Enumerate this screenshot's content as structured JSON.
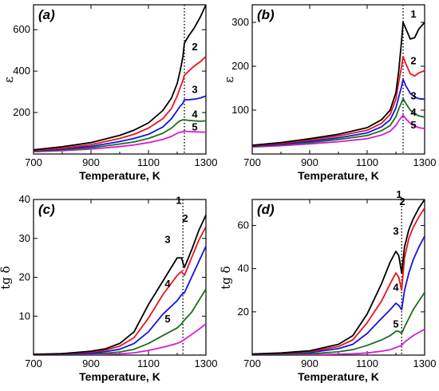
{
  "colors": {
    "s1": "#000000",
    "s2": "#e8141c",
    "s3": "#1414e0",
    "s4": "#1a6e1a",
    "s5": "#d61ad6"
  },
  "chart_data": [
    {
      "type": "line",
      "panel": "(a)",
      "xlabel": "Temperature, K",
      "ylabel": "ε",
      "xlim": [
        700,
        1300
      ],
      "ylim": [
        0,
        720
      ],
      "xticks": [
        700,
        900,
        1100,
        1300
      ],
      "yticks": [
        200,
        400,
        600
      ],
      "vline_x": 1225,
      "series": [
        {
          "name": "1",
          "color": "s1",
          "x": [
            700,
            800,
            900,
            1000,
            1050,
            1100,
            1150,
            1180,
            1200,
            1210,
            1220,
            1225,
            1240,
            1260,
            1280,
            1300
          ],
          "y": [
            20,
            35,
            55,
            90,
            115,
            150,
            210,
            270,
            340,
            400,
            470,
            535,
            570,
            610,
            660,
            720
          ]
        },
        {
          "name": "2",
          "color": "s2",
          "x": [
            700,
            800,
            900,
            1000,
            1050,
            1100,
            1150,
            1180,
            1200,
            1210,
            1220,
            1225,
            1240,
            1260,
            1280,
            1300
          ],
          "y": [
            17,
            28,
            45,
            75,
            95,
            125,
            170,
            220,
            280,
            320,
            355,
            380,
            400,
            425,
            445,
            470
          ]
        },
        {
          "name": "3",
          "color": "s3",
          "x": [
            700,
            800,
            900,
            1000,
            1050,
            1100,
            1150,
            1180,
            1200,
            1210,
            1220,
            1225,
            1240,
            1260,
            1280,
            1300
          ],
          "y": [
            15,
            24,
            37,
            60,
            75,
            95,
            130,
            170,
            210,
            230,
            245,
            262,
            262,
            265,
            270,
            280
          ]
        },
        {
          "name": "4",
          "color": "s4",
          "x": [
            700,
            800,
            900,
            1000,
            1050,
            1100,
            1150,
            1180,
            1200,
            1210,
            1220,
            1225,
            1240,
            1260,
            1280,
            1300
          ],
          "y": [
            13,
            20,
            30,
            48,
            58,
            75,
            100,
            125,
            150,
            160,
            165,
            165,
            162,
            160,
            158,
            160
          ]
        },
        {
          "name": "5",
          "color": "s5",
          "x": [
            700,
            800,
            900,
            1000,
            1050,
            1100,
            1150,
            1180,
            1200,
            1210,
            1220,
            1225,
            1240,
            1260,
            1280,
            1300
          ],
          "y": [
            11,
            16,
            24,
            36,
            44,
            55,
            70,
            85,
            100,
            105,
            108,
            110,
            108,
            107,
            106,
            105
          ]
        }
      ],
      "series_labels": [
        "1",
        "2",
        "3",
        "4",
        "5"
      ]
    },
    {
      "type": "line",
      "panel": "(b)",
      "xlabel": "Temperature, K",
      "ylabel": "ε",
      "xlim": [
        700,
        1300
      ],
      "ylim": [
        0,
        340
      ],
      "xticks": [
        700,
        900,
        1100,
        1300
      ],
      "yticks": [
        100,
        200,
        300
      ],
      "vline_x": 1225,
      "series": [
        {
          "name": "1",
          "color": "s1",
          "x": [
            700,
            800,
            900,
            1000,
            1100,
            1150,
            1180,
            1200,
            1210,
            1220,
            1225,
            1235,
            1250,
            1265,
            1280,
            1300
          ],
          "y": [
            20,
            26,
            35,
            45,
            60,
            78,
            100,
            140,
            190,
            260,
            300,
            285,
            262,
            265,
            285,
            300
          ]
        },
        {
          "name": "2",
          "color": "s2",
          "x": [
            700,
            800,
            900,
            1000,
            1100,
            1150,
            1180,
            1200,
            1210,
            1220,
            1225,
            1235,
            1250,
            1265,
            1280,
            1300
          ],
          "y": [
            19,
            24,
            32,
            41,
            54,
            70,
            90,
            125,
            165,
            200,
            222,
            205,
            183,
            178,
            185,
            190
          ]
        },
        {
          "name": "3",
          "color": "s3",
          "x": [
            700,
            800,
            900,
            1000,
            1100,
            1150,
            1180,
            1200,
            1210,
            1220,
            1225,
            1235,
            1250,
            1265,
            1280,
            1300
          ],
          "y": [
            18,
            22,
            29,
            37,
            48,
            62,
            78,
            105,
            130,
            155,
            170,
            155,
            138,
            130,
            126,
            125
          ]
        },
        {
          "name": "4",
          "color": "s4",
          "x": [
            700,
            800,
            900,
            1000,
            1100,
            1150,
            1180,
            1200,
            1210,
            1220,
            1225,
            1235,
            1250,
            1265,
            1280,
            1300
          ],
          "y": [
            17,
            21,
            26,
            33,
            42,
            53,
            65,
            85,
            103,
            118,
            126,
            115,
            100,
            92,
            87,
            84
          ]
        },
        {
          "name": "5",
          "color": "s5",
          "x": [
            700,
            800,
            900,
            1000,
            1100,
            1150,
            1180,
            1200,
            1210,
            1220,
            1225,
            1235,
            1250,
            1265,
            1280,
            1300
          ],
          "y": [
            16,
            19,
            23,
            28,
            35,
            43,
            52,
            65,
            76,
            84,
            88,
            80,
            70,
            64,
            60,
            58
          ]
        }
      ],
      "series_labels": [
        "1",
        "2",
        "3",
        "4",
        "5"
      ]
    },
    {
      "type": "line",
      "panel": "(c)",
      "xlabel": "Temperature, K",
      "ylabel": "tg δ",
      "xlim": [
        700,
        1300
      ],
      "ylim": [
        0,
        40
      ],
      "xticks": [
        700,
        900,
        1100,
        1300
      ],
      "yticks": [
        10,
        20,
        30,
        40
      ],
      "vline_x": 1220,
      "series": [
        {
          "name": "1",
          "color": "s1",
          "x": [
            700,
            800,
            900,
            950,
            1000,
            1050,
            1100,
            1150,
            1200,
            1215,
            1225,
            1250,
            1275,
            1300
          ],
          "y": [
            0.2,
            0.4,
            1,
            1.6,
            3,
            6,
            13,
            19,
            25,
            25,
            22.5,
            27,
            32,
            36
          ]
        },
        {
          "name": "2",
          "color": "s2",
          "x": [
            700,
            800,
            900,
            950,
            1000,
            1050,
            1100,
            1150,
            1200,
            1215,
            1225,
            1250,
            1275,
            1300
          ],
          "y": [
            0.15,
            0.3,
            0.8,
            1.3,
            2.3,
            4.5,
            9.5,
            15.5,
            20.5,
            21.5,
            20.5,
            25,
            29.5,
            33
          ]
        },
        {
          "name": "3",
          "color": "s3",
          "x": [
            700,
            800,
            900,
            950,
            1000,
            1050,
            1100,
            1150,
            1200,
            1215,
            1225,
            1250,
            1275,
            1300
          ],
          "y": [
            0.1,
            0.2,
            0.5,
            0.9,
            1.5,
            3,
            6,
            10.5,
            14,
            15.5,
            16,
            20,
            24,
            28
          ]
        },
        {
          "name": "4",
          "color": "s4",
          "x": [
            700,
            800,
            900,
            950,
            1000,
            1050,
            1100,
            1150,
            1200,
            1215,
            1225,
            1250,
            1275,
            1300
          ],
          "y": [
            0.05,
            0.1,
            0.3,
            0.5,
            0.8,
            1.5,
            3,
            5,
            7,
            8,
            9,
            11,
            14,
            17
          ]
        },
        {
          "name": "5",
          "color": "s5",
          "x": [
            700,
            800,
            900,
            950,
            1000,
            1050,
            1100,
            1150,
            1200,
            1215,
            1225,
            1250,
            1275,
            1300
          ],
          "y": [
            0.02,
            0.05,
            0.1,
            0.2,
            0.3,
            0.6,
            1.2,
            2,
            3,
            3.5,
            4,
            5.3,
            6.6,
            8
          ]
        }
      ],
      "series_labels": [
        "1",
        "2",
        "3",
        "4",
        "5"
      ]
    },
    {
      "type": "line",
      "panel": "(d)",
      "xlabel": "Temperature, K",
      "ylabel": "tg δ",
      "xlim": [
        700,
        1300
      ],
      "ylim": [
        0,
        72
      ],
      "xticks": [
        700,
        900,
        1100,
        1300
      ],
      "yticks": [
        20,
        40,
        60
      ],
      "vline_x": 1220,
      "series": [
        {
          "name": "1",
          "color": "s1",
          "x": [
            700,
            800,
            900,
            1000,
            1050,
            1100,
            1150,
            1180,
            1200,
            1210,
            1220,
            1230,
            1245,
            1260,
            1280,
            1300
          ],
          "y": [
            0.5,
            1,
            2,
            5,
            9,
            19,
            33,
            43,
            48,
            46,
            38,
            50,
            58,
            63,
            68,
            72
          ]
        },
        {
          "name": "2",
          "color": "s2",
          "x": [
            700,
            800,
            900,
            1000,
            1050,
            1100,
            1150,
            1180,
            1200,
            1210,
            1220,
            1230,
            1245,
            1260,
            1280,
            1300
          ],
          "y": [
            0.4,
            0.8,
            1.6,
            4,
            7,
            15,
            25,
            33,
            38,
            36,
            30,
            45,
            54,
            59,
            64,
            68
          ]
        },
        {
          "name": "3",
          "color": "s3",
          "x": [
            700,
            800,
            900,
            1000,
            1050,
            1100,
            1150,
            1180,
            1200,
            1210,
            1220,
            1230,
            1245,
            1260,
            1280,
            1300
          ],
          "y": [
            0.3,
            0.6,
            1.2,
            3,
            5,
            10,
            17,
            21,
            24,
            23,
            21,
            30,
            38,
            44,
            50,
            55
          ]
        },
        {
          "name": "4",
          "color": "s4",
          "x": [
            700,
            800,
            900,
            1000,
            1050,
            1100,
            1150,
            1180,
            1200,
            1210,
            1220,
            1230,
            1245,
            1260,
            1280,
            1300
          ],
          "y": [
            0.15,
            0.3,
            0.6,
            1.5,
            2.5,
            4.5,
            7,
            9,
            11,
            11,
            10,
            13,
            17,
            21,
            25,
            29
          ]
        },
        {
          "name": "5",
          "color": "s5",
          "x": [
            700,
            800,
            900,
            1000,
            1050,
            1100,
            1150,
            1180,
            1200,
            1210,
            1220,
            1230,
            1245,
            1260,
            1280,
            1300
          ],
          "y": [
            0.05,
            0.1,
            0.2,
            0.4,
            0.6,
            1,
            1.8,
            2.5,
            3.5,
            4,
            4.5,
            6,
            7.5,
            9,
            10.5,
            12
          ]
        }
      ],
      "series_labels": [
        "1",
        "2",
        "3",
        "4",
        "5"
      ]
    }
  ]
}
